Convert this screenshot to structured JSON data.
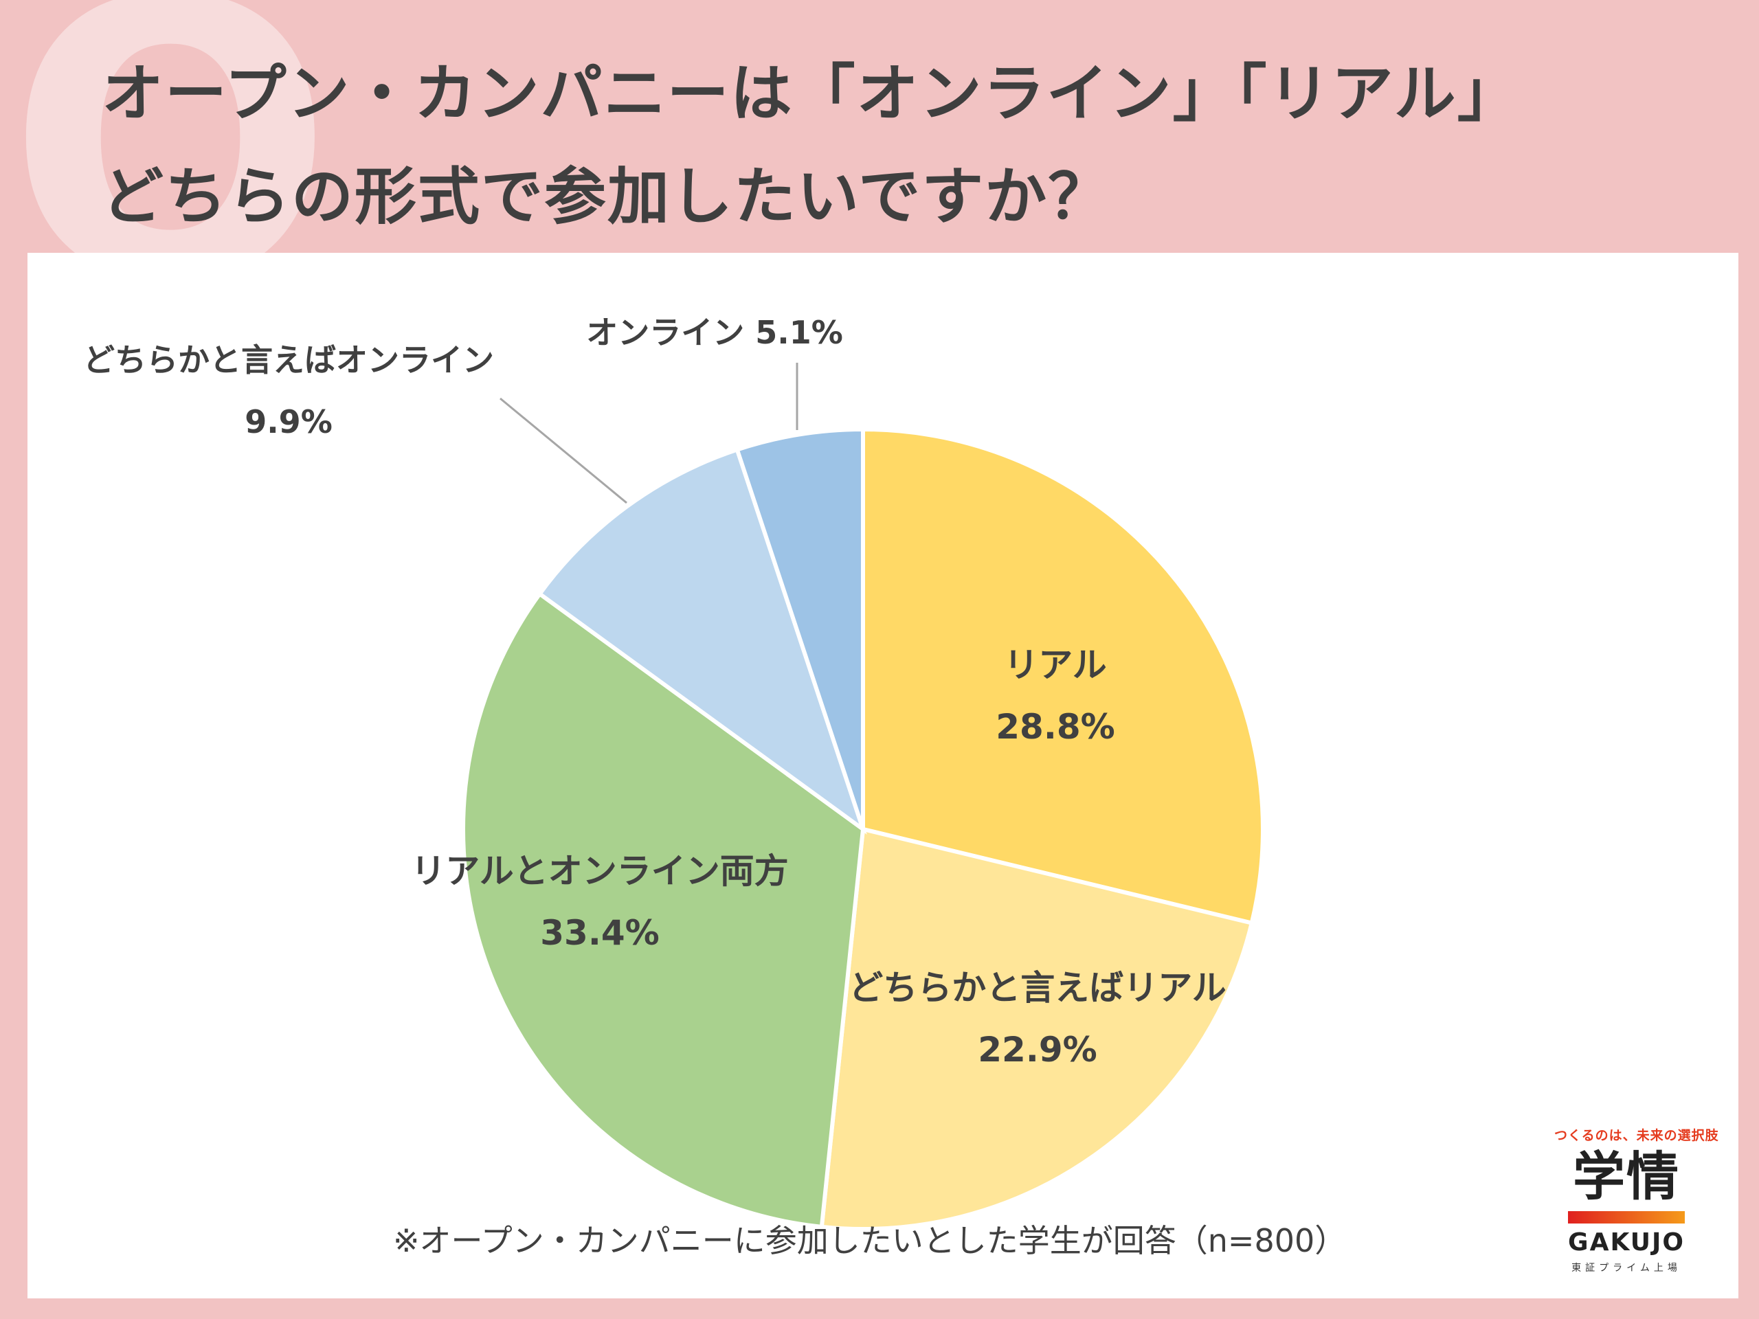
{
  "header": {
    "q_mark": "Q",
    "title_line1": "オープン・カンパニーは「オンライン」「リアル」",
    "title_line2": "どちらの形式で参加したいですか？"
  },
  "chart_data": {
    "type": "pie",
    "start_angle_deg": 0,
    "direction": "clockwise",
    "slices": [
      {
        "label": "リアル",
        "value": 28.8,
        "value_label": "28.8%",
        "color": "#ffd966"
      },
      {
        "label": "どちらかと言えばリアル",
        "value": 22.9,
        "value_label": "22.9%",
        "color": "#ffe699"
      },
      {
        "label": "リアルとオンライン両方",
        "value": 33.4,
        "value_label": "33.4%",
        "color": "#a9d18e"
      },
      {
        "label": "どちらかと言えばオンライン",
        "value": 9.9,
        "value_label": "9.9%",
        "color": "#bdd7ee"
      },
      {
        "label": "オンライン",
        "value": 5.1,
        "value_label": "5.1%",
        "color": "#9dc3e6"
      }
    ],
    "note": "※オープン・カンパニーに参加したいとした学生が回答（n=800）"
  },
  "logo": {
    "tagline": "つくるのは、未来の選択肢",
    "kanji": "学情",
    "brand": "GAKUJO",
    "sub": "東証プライム上場"
  }
}
